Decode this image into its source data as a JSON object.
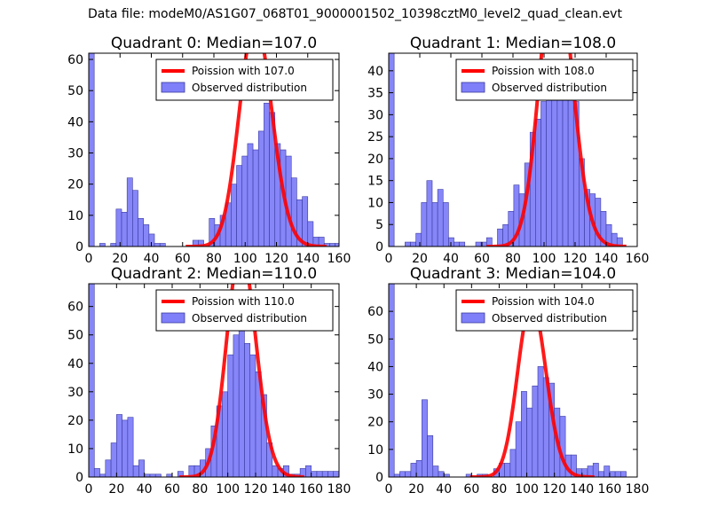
{
  "figure": {
    "title": "Data file: modeM0/AS1G07_068T01_9000001502_10398cztM0_level2_quad_clean.evt"
  },
  "colors": {
    "bar_fill": "#7f7ff9",
    "bar_edge": "#3a3aa0",
    "curve": "#ff0000",
    "axes": "#000000"
  },
  "chart_data": [
    {
      "type": "bar",
      "title": "Quadrant 0: Median=107.0",
      "xlim": [
        0,
        160
      ],
      "ylim": [
        0,
        62
      ],
      "xticks": [
        0,
        20,
        40,
        60,
        80,
        100,
        120,
        140,
        160
      ],
      "yticks": [
        0,
        10,
        20,
        30,
        40,
        50,
        60
      ],
      "bin_width": 3.5,
      "bins": [
        [
          0,
          62
        ],
        [
          3.5,
          0
        ],
        [
          7,
          1
        ],
        [
          10.5,
          0
        ],
        [
          14,
          1
        ],
        [
          17.5,
          12
        ],
        [
          21,
          11
        ],
        [
          24.5,
          22
        ],
        [
          28,
          18
        ],
        [
          31.5,
          9
        ],
        [
          35,
          7
        ],
        [
          38.5,
          4
        ],
        [
          42,
          1
        ],
        [
          45.5,
          1
        ],
        [
          49,
          0
        ],
        [
          52.5,
          0
        ],
        [
          56,
          0
        ],
        [
          59.5,
          0
        ],
        [
          63,
          0
        ],
        [
          66.5,
          2
        ],
        [
          70,
          2
        ],
        [
          73.5,
          0
        ],
        [
          77,
          9
        ],
        [
          80.5,
          7
        ],
        [
          84,
          10
        ],
        [
          87.5,
          14
        ],
        [
          91,
          20
        ],
        [
          94.5,
          26
        ],
        [
          98,
          29
        ],
        [
          101.5,
          33
        ],
        [
          105,
          31
        ],
        [
          108.5,
          37
        ],
        [
          112,
          46
        ],
        [
          115.5,
          43
        ],
        [
          119,
          33
        ],
        [
          122.5,
          31
        ],
        [
          126,
          29
        ],
        [
          129.5,
          22
        ],
        [
          133,
          15
        ],
        [
          136.5,
          16
        ],
        [
          140,
          8
        ],
        [
          143.5,
          3
        ],
        [
          147,
          3
        ],
        [
          150.5,
          1
        ],
        [
          154,
          1
        ],
        [
          157.5,
          1
        ]
      ],
      "curve_mean": 107.0,
      "legend": [
        "Poission with 107.0",
        "Observed distribution"
      ]
    },
    {
      "type": "bar",
      "title": "Quadrant 1: Median=108.0",
      "xlim": [
        0,
        160
      ],
      "ylim": [
        0,
        44
      ],
      "xticks": [
        0,
        20,
        40,
        60,
        80,
        100,
        120,
        140,
        160
      ],
      "yticks": [
        0,
        5,
        10,
        15,
        20,
        25,
        30,
        35,
        40
      ],
      "bin_width": 3.5,
      "bins": [
        [
          0,
          44
        ],
        [
          3.5,
          0
        ],
        [
          7,
          0
        ],
        [
          10.5,
          1
        ],
        [
          14,
          1
        ],
        [
          17.5,
          3
        ],
        [
          21,
          10
        ],
        [
          24.5,
          15
        ],
        [
          28,
          10
        ],
        [
          31.5,
          13
        ],
        [
          35,
          10
        ],
        [
          38.5,
          2
        ],
        [
          42,
          1
        ],
        [
          45.5,
          1
        ],
        [
          49,
          0
        ],
        [
          52.5,
          0
        ],
        [
          56,
          1
        ],
        [
          59.5,
          1
        ],
        [
          63,
          2
        ],
        [
          66.5,
          0
        ],
        [
          70,
          4
        ],
        [
          73.5,
          5
        ],
        [
          77,
          8
        ],
        [
          80.5,
          14
        ],
        [
          84,
          12
        ],
        [
          87.5,
          19
        ],
        [
          91,
          26
        ],
        [
          94.5,
          29
        ],
        [
          98,
          33
        ],
        [
          101.5,
          37
        ],
        [
          105,
          38
        ],
        [
          108.5,
          38
        ],
        [
          112,
          41
        ],
        [
          115.5,
          37
        ],
        [
          119,
          33
        ],
        [
          122.5,
          20
        ],
        [
          126,
          13
        ],
        [
          129.5,
          12
        ],
        [
          133,
          11
        ],
        [
          136.5,
          8
        ],
        [
          140,
          5
        ],
        [
          143.5,
          3
        ],
        [
          147,
          2
        ]
      ],
      "curve_mean": 108.0,
      "legend": [
        "Poission with 108.0",
        "Observed distribution"
      ]
    },
    {
      "type": "bar",
      "title": "Quadrant 2: Median=110.0",
      "xlim": [
        0,
        180
      ],
      "ylim": [
        0,
        68
      ],
      "xticks": [
        0,
        20,
        40,
        60,
        80,
        100,
        120,
        140,
        160,
        180
      ],
      "yticks": [
        0,
        10,
        20,
        30,
        40,
        50,
        60
      ],
      "bin_width": 4,
      "bins": [
        [
          0,
          68
        ],
        [
          4,
          3
        ],
        [
          8,
          1
        ],
        [
          12,
          6
        ],
        [
          16,
          12
        ],
        [
          20,
          22
        ],
        [
          24,
          20
        ],
        [
          28,
          21
        ],
        [
          32,
          4
        ],
        [
          36,
          6
        ],
        [
          40,
          1
        ],
        [
          44,
          1
        ],
        [
          48,
          1
        ],
        [
          52,
          0
        ],
        [
          56,
          1
        ],
        [
          60,
          0
        ],
        [
          64,
          2
        ],
        [
          68,
          0
        ],
        [
          72,
          4
        ],
        [
          76,
          4
        ],
        [
          80,
          6
        ],
        [
          84,
          10
        ],
        [
          88,
          18
        ],
        [
          92,
          25
        ],
        [
          96,
          30
        ],
        [
          100,
          43
        ],
        [
          104,
          50
        ],
        [
          108,
          52
        ],
        [
          112,
          47
        ],
        [
          116,
          43
        ],
        [
          120,
          37
        ],
        [
          124,
          29
        ],
        [
          128,
          12
        ],
        [
          132,
          4
        ],
        [
          136,
          3
        ],
        [
          140,
          4
        ],
        [
          144,
          1
        ],
        [
          148,
          1
        ],
        [
          152,
          3
        ],
        [
          156,
          4
        ],
        [
          160,
          2
        ],
        [
          164,
          2
        ],
        [
          168,
          2
        ],
        [
          172,
          2
        ],
        [
          176,
          2
        ]
      ],
      "curve_mean": 110.0,
      "legend": [
        "Poission with 110.0",
        "Observed distribution"
      ]
    },
    {
      "type": "bar",
      "title": "Quadrant 3: Median=104.0",
      "xlim": [
        0,
        180
      ],
      "ylim": [
        0,
        70
      ],
      "xticks": [
        0,
        20,
        40,
        60,
        80,
        100,
        120,
        140,
        160,
        180
      ],
      "yticks": [
        0,
        10,
        20,
        30,
        40,
        50,
        60
      ],
      "bin_width": 4,
      "bins": [
        [
          0,
          70
        ],
        [
          4,
          1
        ],
        [
          8,
          2
        ],
        [
          12,
          2
        ],
        [
          16,
          5
        ],
        [
          20,
          6
        ],
        [
          24,
          28
        ],
        [
          28,
          15
        ],
        [
          32,
          4
        ],
        [
          36,
          2
        ],
        [
          40,
          1
        ],
        [
          44,
          0
        ],
        [
          48,
          0
        ],
        [
          52,
          0
        ],
        [
          56,
          1
        ],
        [
          60,
          0
        ],
        [
          64,
          1
        ],
        [
          68,
          1
        ],
        [
          72,
          0
        ],
        [
          76,
          3
        ],
        [
          80,
          5
        ],
        [
          84,
          5
        ],
        [
          88,
          10
        ],
        [
          92,
          20
        ],
        [
          96,
          31
        ],
        [
          100,
          25
        ],
        [
          104,
          33
        ],
        [
          108,
          40
        ],
        [
          112,
          36
        ],
        [
          116,
          34
        ],
        [
          120,
          25
        ],
        [
          124,
          22
        ],
        [
          128,
          8
        ],
        [
          132,
          8
        ],
        [
          136,
          3
        ],
        [
          140,
          3
        ],
        [
          144,
          4
        ],
        [
          148,
          5
        ],
        [
          152,
          2
        ],
        [
          156,
          4
        ],
        [
          160,
          2
        ],
        [
          164,
          2
        ],
        [
          168,
          2
        ]
      ],
      "curve_mean": 104.0,
      "legend": [
        "Poission with 104.0",
        "Observed distribution"
      ]
    }
  ]
}
